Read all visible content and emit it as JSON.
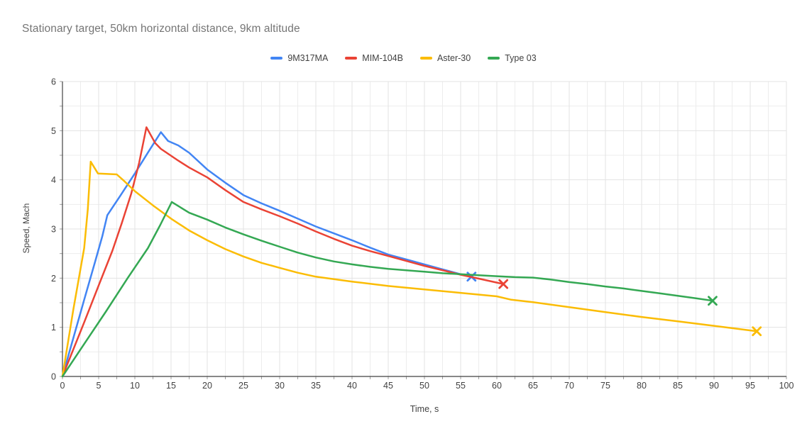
{
  "chart_data": {
    "type": "line",
    "title": "Stationary target, 50km horizontal distance, 9km altitude",
    "xlabel": "Time, s",
    "ylabel": "Speed, Mach",
    "xlim": [
      0,
      100
    ],
    "ylim": [
      0,
      6
    ],
    "x_major_step": 5,
    "x_minor_step": 2.5,
    "y_major_step": 1,
    "y_minor_step": 0.5,
    "x_tick_labels": [
      "0",
      "5",
      "10",
      "15",
      "20",
      "25",
      "30",
      "35",
      "40",
      "45",
      "50",
      "55",
      "60",
      "65",
      "70",
      "75",
      "80",
      "85",
      "90",
      "95",
      "100"
    ],
    "y_tick_labels": [
      "0",
      "1",
      "2",
      "3",
      "4",
      "5",
      "6"
    ],
    "grid": true,
    "legend_position": "top-center",
    "colors": {
      "background": "#ffffff",
      "title_text": "#757575",
      "axis_text": "#424242",
      "axis_line": "#424242",
      "gridline_major": "#e3e3e3",
      "gridline_minor": "#ededed",
      "tick": "#9e9e9e"
    },
    "series": [
      {
        "name": "9M317MA",
        "color": "#4285F4",
        "end_marker": "x",
        "points": [
          [
            0,
            0
          ],
          [
            1.5,
            0.78
          ],
          [
            3,
            1.56
          ],
          [
            4.5,
            2.33
          ],
          [
            5.5,
            2.85
          ],
          [
            6.2,
            3.28
          ],
          [
            8,
            3.68
          ],
          [
            10,
            4.13
          ],
          [
            12,
            4.6
          ],
          [
            13.6,
            4.97
          ],
          [
            14.6,
            4.79
          ],
          [
            16,
            4.7
          ],
          [
            17.5,
            4.55
          ],
          [
            20,
            4.21
          ],
          [
            22.5,
            3.94
          ],
          [
            25,
            3.69
          ],
          [
            27.5,
            3.52
          ],
          [
            30,
            3.37
          ],
          [
            32.5,
            3.21
          ],
          [
            35,
            3.05
          ],
          [
            37.5,
            2.91
          ],
          [
            40,
            2.77
          ],
          [
            42.5,
            2.62
          ],
          [
            45,
            2.48
          ],
          [
            47.5,
            2.38
          ],
          [
            50,
            2.28
          ],
          [
            52.5,
            2.18
          ],
          [
            55,
            2.08
          ],
          [
            56.5,
            2.03
          ]
        ]
      },
      {
        "name": "MIM-104B",
        "color": "#EA4335",
        "end_marker": "x",
        "points": [
          [
            0,
            0
          ],
          [
            3,
            1.1
          ],
          [
            5,
            1.85
          ],
          [
            6.9,
            2.56
          ],
          [
            8.2,
            3.12
          ],
          [
            9.5,
            3.72
          ],
          [
            10.6,
            4.35
          ],
          [
            11.6,
            5.07
          ],
          [
            12.8,
            4.75
          ],
          [
            13.6,
            4.63
          ],
          [
            16,
            4.39
          ],
          [
            17.5,
            4.25
          ],
          [
            20,
            4.05
          ],
          [
            22.5,
            3.79
          ],
          [
            25,
            3.55
          ],
          [
            27.5,
            3.4
          ],
          [
            30,
            3.26
          ],
          [
            32.5,
            3.11
          ],
          [
            35,
            2.95
          ],
          [
            37.5,
            2.8
          ],
          [
            40,
            2.66
          ],
          [
            42.5,
            2.55
          ],
          [
            45,
            2.45
          ],
          [
            47.5,
            2.35
          ],
          [
            50,
            2.25
          ],
          [
            52.5,
            2.16
          ],
          [
            55,
            2.07
          ],
          [
            57.5,
            1.99
          ],
          [
            60,
            1.91
          ],
          [
            60.9,
            1.88
          ]
        ]
      },
      {
        "name": "Aster-30",
        "color": "#FBBC04",
        "end_marker": "x",
        "points": [
          [
            0,
            0
          ],
          [
            1.5,
            1.36
          ],
          [
            3,
            2.61
          ],
          [
            3.5,
            3.4
          ],
          [
            3.9,
            4.37
          ],
          [
            4.9,
            4.13
          ],
          [
            6,
            4.12
          ],
          [
            7.5,
            4.11
          ],
          [
            8.5,
            3.98
          ],
          [
            10,
            3.77
          ],
          [
            12.5,
            3.48
          ],
          [
            15,
            3.21
          ],
          [
            17.5,
            2.97
          ],
          [
            20,
            2.77
          ],
          [
            22.5,
            2.59
          ],
          [
            25,
            2.44
          ],
          [
            27.5,
            2.31
          ],
          [
            30,
            2.21
          ],
          [
            32.5,
            2.11
          ],
          [
            35,
            2.03
          ],
          [
            37.5,
            1.98
          ],
          [
            40,
            1.93
          ],
          [
            45,
            1.84
          ],
          [
            50,
            1.77
          ],
          [
            55,
            1.7
          ],
          [
            60,
            1.63
          ],
          [
            62,
            1.56
          ],
          [
            65,
            1.51
          ],
          [
            70,
            1.41
          ],
          [
            75,
            1.31
          ],
          [
            80,
            1.21
          ],
          [
            85,
            1.12
          ],
          [
            90,
            1.03
          ],
          [
            95.9,
            0.92
          ]
        ]
      },
      {
        "name": "Type 03",
        "color": "#34A853",
        "end_marker": "x",
        "points": [
          [
            0,
            0
          ],
          [
            3,
            0.66
          ],
          [
            6,
            1.32
          ],
          [
            9,
            2.0
          ],
          [
            11.8,
            2.61
          ],
          [
            13.5,
            3.08
          ],
          [
            15.1,
            3.55
          ],
          [
            17.5,
            3.33
          ],
          [
            20,
            3.19
          ],
          [
            22.5,
            3.03
          ],
          [
            25,
            2.89
          ],
          [
            27.5,
            2.76
          ],
          [
            30,
            2.64
          ],
          [
            32.5,
            2.52
          ],
          [
            35,
            2.42
          ],
          [
            37.5,
            2.34
          ],
          [
            40,
            2.28
          ],
          [
            42.5,
            2.23
          ],
          [
            45,
            2.19
          ],
          [
            47.5,
            2.16
          ],
          [
            50,
            2.13
          ],
          [
            52.5,
            2.1
          ],
          [
            55,
            2.08
          ],
          [
            57.5,
            2.06
          ],
          [
            60,
            2.04
          ],
          [
            62.5,
            2.02
          ],
          [
            65,
            2.01
          ],
          [
            67.5,
            1.97
          ],
          [
            70,
            1.92
          ],
          [
            72.5,
            1.88
          ],
          [
            75,
            1.83
          ],
          [
            77.5,
            1.79
          ],
          [
            80,
            1.74
          ],
          [
            82.5,
            1.69
          ],
          [
            85,
            1.64
          ],
          [
            87.5,
            1.59
          ],
          [
            89.8,
            1.54
          ]
        ]
      }
    ]
  }
}
